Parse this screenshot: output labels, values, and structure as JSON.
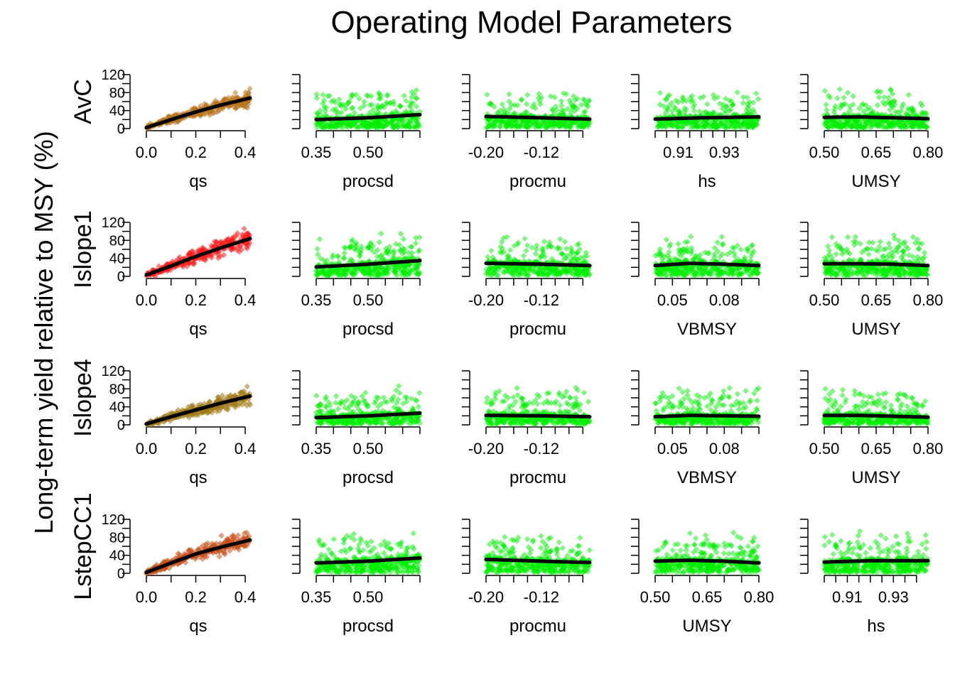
{
  "title": "Operating Model Parameters",
  "ylabel": "Long-term yield relative to MSY (%)",
  "chart_data": {
    "type": "scatter",
    "title": "Operating Model Parameters",
    "ylabel": "Long-term yield relative to MSY (%)",
    "ylim": [
      0,
      120
    ],
    "yticks": [
      0,
      40,
      80,
      120
    ],
    "y_tick_labels": [
      "0",
      "40",
      "80",
      "120"
    ],
    "rows": [
      {
        "mp": "AvC",
        "mp_color": "#b8731e",
        "panels": [
          {
            "xlabel": "qs",
            "xlim": [
              0.0,
              0.42
            ],
            "xticks": [
              0.0,
              0.1,
              0.2,
              0.3,
              0.4
            ],
            "tick_labels": [
              [
                "0.0",
                0.0
              ],
              [
                "0.2",
                0.2
              ],
              [
                "0.4",
                0.4
              ]
            ],
            "trend": [
              [
                0.0,
                2
              ],
              [
                0.1,
                20
              ],
              [
                0.2,
                37
              ],
              [
                0.3,
                52
              ],
              [
                0.42,
                68
              ]
            ],
            "sd": 12
          },
          {
            "xlabel": "procsd",
            "xlim": [
              0.35,
              0.65
            ],
            "xticks": [
              0.35,
              0.4,
              0.45,
              0.5,
              0.55,
              0.6,
              0.65
            ],
            "tick_labels": [
              [
                "0.35",
                0.35
              ],
              [
                "0.50",
                0.5
              ]
            ],
            "trend": [
              [
                0.35,
                20
              ],
              [
                0.5,
                24
              ],
              [
                0.65,
                31
              ]
            ],
            "sd": 22
          },
          {
            "xlabel": "procmu",
            "xlim": [
              -0.2,
              -0.05
            ],
            "xticks": [
              -0.2,
              -0.18,
              -0.16,
              -0.14,
              -0.12,
              -0.1,
              -0.08,
              -0.06
            ],
            "tick_labels": [
              [
                "-0.20",
                -0.2
              ],
              [
                "-0.12",
                -0.12
              ]
            ],
            "trend": [
              [
                -0.2,
                27
              ],
              [
                -0.12,
                24
              ],
              [
                -0.05,
                21
              ]
            ],
            "sd": 22
          },
          {
            "xlabel": "hs",
            "xlim": [
              0.9,
              0.945
            ],
            "xticks": [
              0.9,
              0.905,
              0.91,
              0.915,
              0.92,
              0.925,
              0.93,
              0.935,
              0.94
            ],
            "tick_labels": [
              [
                "0.91",
                0.91
              ],
              [
                "0.93",
                0.93
              ]
            ],
            "trend": [
              [
                0.9,
                21
              ],
              [
                0.92,
                24
              ],
              [
                0.945,
                26
              ]
            ],
            "sd": 22
          },
          {
            "xlabel": "UMSY",
            "xlim": [
              0.5,
              0.8
            ],
            "xticks": [
              0.5,
              0.55,
              0.6,
              0.65,
              0.7,
              0.75,
              0.8
            ],
            "tick_labels": [
              [
                "0.50",
                0.5
              ],
              [
                "0.65",
                0.65
              ],
              [
                "0.80",
                0.8
              ]
            ],
            "trend": [
              [
                0.5,
                25
              ],
              [
                0.6,
                26
              ],
              [
                0.7,
                24
              ],
              [
                0.8,
                22
              ]
            ],
            "sd": 22
          }
        ]
      },
      {
        "mp": "Islope1",
        "mp_color": "#ff1a1a",
        "panels": [
          {
            "xlabel": "qs",
            "xlim": [
              0.0,
              0.42
            ],
            "xticks": [
              0.0,
              0.1,
              0.2,
              0.3,
              0.4
            ],
            "tick_labels": [
              [
                "0.0",
                0.0
              ],
              [
                "0.2",
                0.2
              ],
              [
                "0.4",
                0.4
              ]
            ],
            "trend": [
              [
                0.0,
                3
              ],
              [
                0.1,
                23
              ],
              [
                0.2,
                44
              ],
              [
                0.3,
                63
              ],
              [
                0.42,
                84
              ]
            ],
            "sd": 14
          },
          {
            "xlabel": "procsd",
            "xlim": [
              0.35,
              0.65
            ],
            "xticks": [
              0.35,
              0.4,
              0.45,
              0.5,
              0.55,
              0.6,
              0.65
            ],
            "tick_labels": [
              [
                "0.35",
                0.35
              ],
              [
                "0.50",
                0.5
              ]
            ],
            "trend": [
              [
                0.35,
                21
              ],
              [
                0.5,
                27
              ],
              [
                0.65,
                35
              ]
            ],
            "sd": 24
          },
          {
            "xlabel": "procmu",
            "xlim": [
              -0.2,
              -0.05
            ],
            "xticks": [
              -0.2,
              -0.18,
              -0.16,
              -0.14,
              -0.12,
              -0.1,
              -0.08,
              -0.06
            ],
            "tick_labels": [
              [
                "-0.20",
                -0.2
              ],
              [
                "-0.12",
                -0.12
              ]
            ],
            "trend": [
              [
                -0.2,
                29
              ],
              [
                -0.12,
                27
              ],
              [
                -0.05,
                24
              ]
            ],
            "sd": 24
          },
          {
            "xlabel": "VBMSY",
            "xlim": [
              0.04,
              0.1
            ],
            "xticks": [
              0.04,
              0.05,
              0.06,
              0.07,
              0.08,
              0.09,
              0.1
            ],
            "tick_labels": [
              [
                "0.05",
                0.05
              ],
              [
                "0.08",
                0.08
              ]
            ],
            "trend": [
              [
                0.04,
                24
              ],
              [
                0.06,
                29
              ],
              [
                0.08,
                27
              ],
              [
                0.1,
                24
              ]
            ],
            "sd": 24
          },
          {
            "xlabel": "UMSY",
            "xlim": [
              0.5,
              0.8
            ],
            "xticks": [
              0.5,
              0.55,
              0.6,
              0.65,
              0.7,
              0.75,
              0.8
            ],
            "tick_labels": [
              [
                "0.50",
                0.5
              ],
              [
                "0.65",
                0.65
              ],
              [
                "0.80",
                0.8
              ]
            ],
            "trend": [
              [
                0.5,
                28
              ],
              [
                0.6,
                28
              ],
              [
                0.7,
                27
              ],
              [
                0.8,
                24
              ]
            ],
            "sd": 24
          }
        ]
      },
      {
        "mp": "Islope4",
        "mp_color": "#a07a18",
        "panels": [
          {
            "xlabel": "qs",
            "xlim": [
              0.0,
              0.42
            ],
            "xticks": [
              0.0,
              0.1,
              0.2,
              0.3,
              0.4
            ],
            "tick_labels": [
              [
                "0.0",
                0.0
              ],
              [
                "0.2",
                0.2
              ],
              [
                "0.4",
                0.4
              ]
            ],
            "trend": [
              [
                0.0,
                2
              ],
              [
                0.1,
                18
              ],
              [
                0.2,
                33
              ],
              [
                0.3,
                48
              ],
              [
                0.42,
                64
              ]
            ],
            "sd": 12
          },
          {
            "xlabel": "procsd",
            "xlim": [
              0.35,
              0.65
            ],
            "xticks": [
              0.35,
              0.4,
              0.45,
              0.5,
              0.55,
              0.6,
              0.65
            ],
            "tick_labels": [
              [
                "0.35",
                0.35
              ],
              [
                "0.50",
                0.5
              ]
            ],
            "trend": [
              [
                0.35,
                16
              ],
              [
                0.5,
                20
              ],
              [
                0.65,
                26
              ]
            ],
            "sd": 20
          },
          {
            "xlabel": "procmu",
            "xlim": [
              -0.2,
              -0.05
            ],
            "xticks": [
              -0.2,
              -0.18,
              -0.16,
              -0.14,
              -0.12,
              -0.1,
              -0.08,
              -0.06
            ],
            "tick_labels": [
              [
                "-0.20",
                -0.2
              ],
              [
                "-0.12",
                -0.12
              ]
            ],
            "trend": [
              [
                -0.2,
                21
              ],
              [
                -0.12,
                20
              ],
              [
                -0.05,
                18
              ]
            ],
            "sd": 20
          },
          {
            "xlabel": "VBMSY",
            "xlim": [
              0.04,
              0.1
            ],
            "xticks": [
              0.04,
              0.05,
              0.06,
              0.07,
              0.08,
              0.09,
              0.1
            ],
            "tick_labels": [
              [
                "0.05",
                0.05
              ],
              [
                "0.08",
                0.08
              ]
            ],
            "trend": [
              [
                0.04,
                18
              ],
              [
                0.06,
                21
              ],
              [
                0.08,
                20
              ],
              [
                0.1,
                19
              ]
            ],
            "sd": 20
          },
          {
            "xlabel": "UMSY",
            "xlim": [
              0.5,
              0.8
            ],
            "xticks": [
              0.5,
              0.55,
              0.6,
              0.65,
              0.7,
              0.75,
              0.8
            ],
            "tick_labels": [
              [
                "0.50",
                0.5
              ],
              [
                "0.65",
                0.65
              ],
              [
                "0.80",
                0.8
              ]
            ],
            "trend": [
              [
                0.5,
                21
              ],
              [
                0.6,
                21
              ],
              [
                0.7,
                19
              ],
              [
                0.8,
                17
              ]
            ],
            "sd": 20
          }
        ]
      },
      {
        "mp": "LstepCC1",
        "mp_color": "#c7501a",
        "panels": [
          {
            "xlabel": "qs",
            "xlim": [
              0.0,
              0.42
            ],
            "xticks": [
              0.0,
              0.1,
              0.2,
              0.3,
              0.4
            ],
            "tick_labels": [
              [
                "0.0",
                0.0
              ],
              [
                "0.2",
                0.2
              ],
              [
                "0.4",
                0.4
              ]
            ],
            "trend": [
              [
                0.0,
                2
              ],
              [
                0.1,
                23
              ],
              [
                0.2,
                43
              ],
              [
                0.3,
                58
              ],
              [
                0.42,
                74
              ]
            ],
            "sd": 13
          },
          {
            "xlabel": "procsd",
            "xlim": [
              0.35,
              0.65
            ],
            "xticks": [
              0.35,
              0.4,
              0.45,
              0.5,
              0.55,
              0.6,
              0.65
            ],
            "tick_labels": [
              [
                "0.35",
                0.35
              ],
              [
                "0.50",
                0.5
              ]
            ],
            "trend": [
              [
                0.35,
                23
              ],
              [
                0.5,
                27
              ],
              [
                0.65,
                34
              ]
            ],
            "sd": 24
          },
          {
            "xlabel": "procmu",
            "xlim": [
              -0.2,
              -0.05
            ],
            "xticks": [
              -0.2,
              -0.18,
              -0.16,
              -0.14,
              -0.12,
              -0.1,
              -0.08,
              -0.06
            ],
            "tick_labels": [
              [
                "-0.20",
                -0.2
              ],
              [
                "-0.12",
                -0.12
              ]
            ],
            "trend": [
              [
                -0.2,
                31
              ],
              [
                -0.12,
                27
              ],
              [
                -0.05,
                24
              ]
            ],
            "sd": 24
          },
          {
            "xlabel": "UMSY",
            "xlim": [
              0.5,
              0.8
            ],
            "xticks": [
              0.5,
              0.55,
              0.6,
              0.65,
              0.7,
              0.75,
              0.8
            ],
            "tick_labels": [
              [
                "0.50",
                0.5
              ],
              [
                "0.65",
                0.65
              ],
              [
                "0.80",
                0.8
              ]
            ],
            "trend": [
              [
                0.5,
                27
              ],
              [
                0.6,
                29
              ],
              [
                0.7,
                27
              ],
              [
                0.8,
                23
              ]
            ],
            "sd": 24
          },
          {
            "xlabel": "hs",
            "xlim": [
              0.9,
              0.945
            ],
            "xticks": [
              0.9,
              0.905,
              0.91,
              0.915,
              0.92,
              0.925,
              0.93,
              0.935,
              0.94
            ],
            "tick_labels": [
              [
                "0.91",
                0.91
              ],
              [
                "0.93",
                0.93
              ]
            ],
            "trend": [
              [
                0.9,
                25
              ],
              [
                0.92,
                28
              ],
              [
                0.945,
                28
              ]
            ],
            "sd": 24
          }
        ]
      }
    ],
    "param_point_color": "#00ee00",
    "trend_color": "#000000",
    "n_points_per_panel": 420
  }
}
